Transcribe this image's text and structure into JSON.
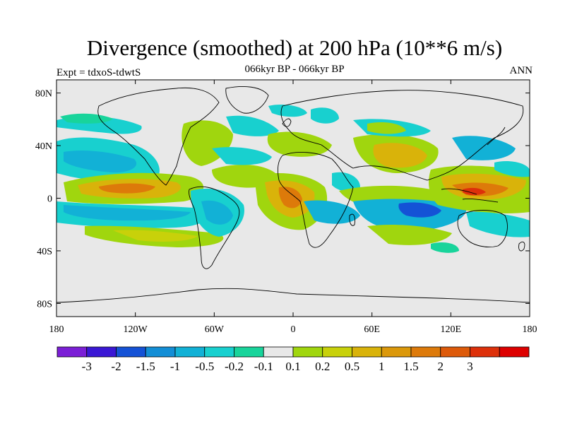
{
  "header": {
    "title": "Divergence (smoothed) at 200 hPa (10**6 m/s)",
    "subtitle": "066kyr BP - 066kyr BP",
    "left_label": "Expt = tdxoS-tdwtS",
    "right_label": "ANN"
  },
  "map": {
    "background_color": "#e8e8e8",
    "lon_range": [
      -180,
      180
    ],
    "lat_range": [
      -90,
      90
    ],
    "y_ticks": [
      {
        "value": 80,
        "label": "80N"
      },
      {
        "value": 40,
        "label": "40N"
      },
      {
        "value": 0,
        "label": "0"
      },
      {
        "value": -40,
        "label": "40S"
      },
      {
        "value": -80,
        "label": "80S"
      }
    ],
    "x_ticks": [
      {
        "value": -180,
        "label": "180"
      },
      {
        "value": -120,
        "label": "120W"
      },
      {
        "value": -60,
        "label": "60W"
      },
      {
        "value": 0,
        "label": "0"
      },
      {
        "value": 60,
        "label": "60E"
      },
      {
        "value": 120,
        "label": "120E"
      },
      {
        "value": 180,
        "label": "180"
      }
    ]
  },
  "colorbar": {
    "colors": [
      "#7b1fd6",
      "#3a17d4",
      "#1452d6",
      "#138ed6",
      "#12b1d6",
      "#18d0cf",
      "#18d49b",
      "#e8e8e8",
      "#a0d60e",
      "#c8d10a",
      "#d9b30a",
      "#db980a",
      "#dd7a0a",
      "#dd5a0a",
      "#dd300a",
      "#dd0000"
    ],
    "labels": [
      "-3",
      "-2",
      "-1.5",
      "-1",
      "-0.5",
      "-0.2",
      "-0.1",
      "0.1",
      "0.2",
      "0.5",
      "1",
      "1.5",
      "2",
      "3"
    ]
  }
}
